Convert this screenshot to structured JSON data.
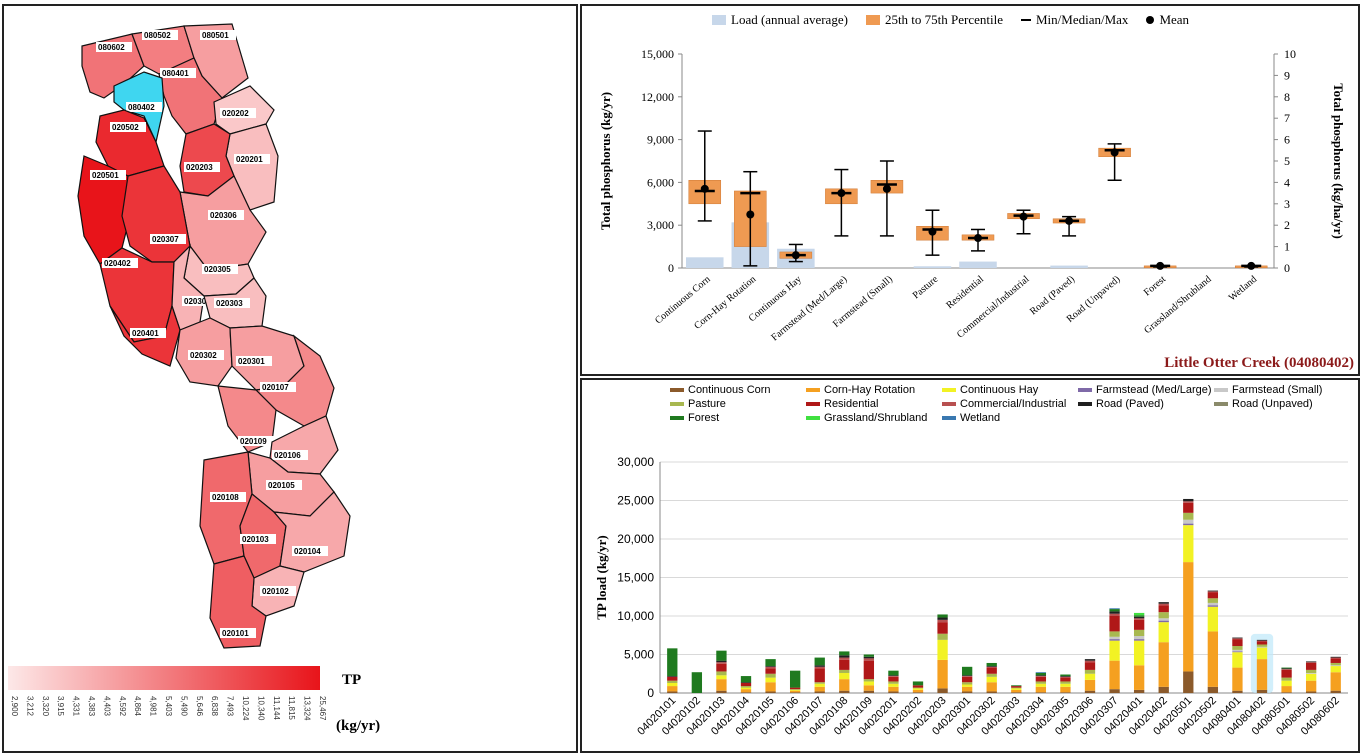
{
  "map": {
    "legend_title": "TP",
    "legend_unit": "(kg/yr)",
    "legend_ticks": [
      "2,900",
      "3,212",
      "3,320",
      "3,915",
      "4,331",
      "4,383",
      "4,403",
      "4,592",
      "4,864",
      "4,981",
      "5,403",
      "5,490",
      "5,646",
      "6,838",
      "7,493",
      "10,224",
      "10,340",
      "11,144",
      "11,815",
      "13,324",
      "25,467"
    ],
    "colors": {
      "low": "#fde8e8",
      "high": "#e8141a",
      "selected": "#3fd6f0"
    },
    "units": [
      {
        "id": "080602",
        "level": 0.55
      },
      {
        "id": "080502",
        "level": 0.5
      },
      {
        "id": "080501",
        "level": 0.35
      },
      {
        "id": "080401",
        "level": 0.55
      },
      {
        "id": "080402",
        "level": -1
      },
      {
        "id": "020202",
        "level": 0.15
      },
      {
        "id": "020502",
        "level": 0.9
      },
      {
        "id": "020201",
        "level": 0.2
      },
      {
        "id": "020501",
        "level": 1.0
      },
      {
        "id": "020203",
        "level": 0.75
      },
      {
        "id": "020306",
        "level": 0.35
      },
      {
        "id": "020307",
        "level": 0.85
      },
      {
        "id": "020402",
        "level": 0.85
      },
      {
        "id": "020305",
        "level": 0.2
      },
      {
        "id": "020304",
        "level": 0.25
      },
      {
        "id": "020303",
        "level": 0.2
      },
      {
        "id": "020401",
        "level": 0.85
      },
      {
        "id": "020302",
        "level": 0.35
      },
      {
        "id": "020301",
        "level": 0.35
      },
      {
        "id": "020107",
        "level": 0.45
      },
      {
        "id": "020109",
        "level": 0.45
      },
      {
        "id": "020106",
        "level": 0.3
      },
      {
        "id": "020105",
        "level": 0.35
      },
      {
        "id": "020108",
        "level": 0.6
      },
      {
        "id": "020103",
        "level": 0.6
      },
      {
        "id": "020104",
        "level": 0.3
      },
      {
        "id": "020102",
        "level": 0.25
      },
      {
        "id": "020101",
        "level": 0.65
      }
    ]
  },
  "chart_data": [
    {
      "type": "box",
      "watershed": "Little Otter Creek (04080402)",
      "legend": [
        "Load (annual average)",
        "25th to 75th Percentile",
        "Min/Median/Max",
        "Mean"
      ],
      "ylabel": "Total phosphorus (kg/yr)",
      "y2label": "Total phosphorus (kg/ha/yr)",
      "ylim": [
        0,
        15000
      ],
      "y2lim": [
        0,
        10
      ],
      "yticks": [
        "0",
        "3,000",
        "6,000",
        "9,000",
        "12,000",
        "15,000"
      ],
      "y2ticks": [
        "0",
        "1",
        "2",
        "3",
        "4",
        "5",
        "6",
        "7",
        "8",
        "9",
        "10"
      ],
      "categories": [
        "Continuous Corn",
        "Corn-Hay Rotation",
        "Continuous Hay",
        "Farmstead (Med/Large)",
        "Farmstead (Small)",
        "Pasture",
        "Residential",
        "Commercial/Industrial",
        "Road (Paved)",
        "Road (Unpaved)",
        "Forest",
        "Grassland/Shrubland",
        "Wetland"
      ],
      "load_kg_yr": [
        750,
        3200,
        1350,
        0,
        0,
        120,
        450,
        0,
        170,
        0,
        0,
        0,
        0
      ],
      "rate_kg_ha_yr": [
        {
          "min": 2.2,
          "q1": 3.0,
          "median": 3.6,
          "q3": 4.1,
          "max": 6.4,
          "mean": 3.7
        },
        {
          "min": 0.1,
          "q1": 1.0,
          "median": 3.5,
          "q3": 3.6,
          "max": 4.5,
          "mean": 2.5
        },
        {
          "min": 0.3,
          "q1": 0.45,
          "median": 0.6,
          "q3": 0.75,
          "max": 1.1,
          "mean": 0.6
        },
        {
          "min": 1.5,
          "q1": 3.0,
          "median": 3.5,
          "q3": 3.7,
          "max": 4.6,
          "mean": 3.5
        },
        {
          "min": 1.5,
          "q1": 3.5,
          "median": 3.9,
          "q3": 4.1,
          "max": 5.0,
          "mean": 3.7
        },
        {
          "min": 0.6,
          "q1": 1.3,
          "median": 1.8,
          "q3": 1.95,
          "max": 2.7,
          "mean": 1.7
        },
        {
          "min": 0.8,
          "q1": 1.3,
          "median": 1.4,
          "q3": 1.55,
          "max": 1.8,
          "mean": 1.4
        },
        {
          "min": 1.6,
          "q1": 2.3,
          "median": 2.45,
          "q3": 2.55,
          "max": 2.7,
          "mean": 2.4
        },
        {
          "min": 1.5,
          "q1": 2.1,
          "median": 2.2,
          "q3": 2.3,
          "max": 2.4,
          "mean": 2.2
        },
        {
          "min": 4.1,
          "q1": 5.2,
          "median": 5.5,
          "q3": 5.6,
          "max": 5.8,
          "mean": 5.4
        },
        {
          "min": 0.05,
          "q1": 0.05,
          "median": 0.1,
          "q3": 0.1,
          "max": 0.1,
          "mean": 0.1
        },
        null,
        {
          "min": 0.05,
          "q1": 0.05,
          "median": 0.1,
          "q3": 0.1,
          "max": 0.1,
          "mean": 0.1
        }
      ]
    },
    {
      "type": "stacked-bar",
      "ylabel": "TP load (kg/yr)",
      "ylim": [
        0,
        30000
      ],
      "yticks": [
        "0",
        "5,000",
        "10,000",
        "15,000",
        "20,000",
        "25,000",
        "30,000"
      ],
      "highlight": "04080402",
      "series": [
        {
          "name": "Continuous Corn",
          "color": "#8b5a2b"
        },
        {
          "name": "Corn-Hay Rotation",
          "color": "#f5a020"
        },
        {
          "name": "Continuous Hay",
          "color": "#f2f224"
        },
        {
          "name": "Farmstead (Med/Large)",
          "color": "#7f6aa8"
        },
        {
          "name": "Farmstead (Small)",
          "color": "#c8c8c8"
        },
        {
          "name": "Pasture",
          "color": "#a8b850"
        },
        {
          "name": "Residential",
          "color": "#b01818"
        },
        {
          "name": "Commercial/Industrial",
          "color": "#b85050"
        },
        {
          "name": "Road (Paved)",
          "color": "#202020"
        },
        {
          "name": "Road (Unpaved)",
          "color": "#8a8a6a"
        },
        {
          "name": "Forest",
          "color": "#1f7a1f"
        },
        {
          "name": "Grassland/Shrubland",
          "color": "#40e040"
        },
        {
          "name": "Wetland",
          "color": "#3a78b0"
        }
      ],
      "categories": [
        "04020101",
        "04020102",
        "04020103",
        "04020104",
        "04020105",
        "04020106",
        "04020107",
        "04020108",
        "04020109",
        "04020201",
        "04020202",
        "04020203",
        "04020301",
        "04020302",
        "04020303",
        "04020304",
        "04020305",
        "04020306",
        "04020307",
        "04020401",
        "04020402",
        "04020501",
        "04020502",
        "04080401",
        "04080402",
        "04080501",
        "04080502",
        "04080602"
      ],
      "values": [
        [
          200,
          700,
          400,
          0,
          0,
          300,
          500,
          0,
          100,
          0,
          3600,
          0,
          0
        ],
        [
          0,
          0,
          0,
          0,
          0,
          0,
          0,
          0,
          0,
          0,
          2700,
          0,
          0
        ],
        [
          300,
          1500,
          500,
          0,
          0,
          500,
          1000,
          200,
          200,
          0,
          1300,
          0,
          0
        ],
        [
          100,
          400,
          200,
          0,
          0,
          200,
          400,
          0,
          100,
          0,
          800,
          0,
          0
        ],
        [
          200,
          1200,
          600,
          0,
          0,
          500,
          700,
          200,
          100,
          0,
          900,
          0,
          0
        ],
        [
          100,
          200,
          100,
          0,
          0,
          100,
          200,
          0,
          0,
          0,
          2200,
          0,
          0
        ],
        [
          200,
          600,
          400,
          0,
          0,
          200,
          1800,
          200,
          200,
          0,
          1000,
          0,
          0
        ],
        [
          300,
          1500,
          800,
          0,
          0,
          400,
          1300,
          300,
          300,
          0,
          500,
          0,
          0
        ],
        [
          300,
          700,
          500,
          0,
          0,
          300,
          2400,
          300,
          200,
          0,
          300,
          0,
          0
        ],
        [
          200,
          600,
          400,
          0,
          0,
          300,
          600,
          100,
          100,
          0,
          600,
          0,
          0
        ],
        [
          100,
          300,
          200,
          0,
          0,
          100,
          300,
          0,
          0,
          0,
          500,
          0,
          0
        ],
        [
          600,
          3700,
          2600,
          0,
          0,
          800,
          1500,
          300,
          300,
          0,
          400,
          0,
          0
        ],
        [
          200,
          600,
          300,
          0,
          0,
          300,
          700,
          100,
          100,
          0,
          1100,
          0,
          0
        ],
        [
          200,
          1200,
          700,
          0,
          0,
          400,
          800,
          100,
          100,
          0,
          400,
          0,
          0
        ],
        [
          100,
          300,
          200,
          0,
          0,
          100,
          200,
          0,
          0,
          0,
          100,
          0,
          0
        ],
        [
          100,
          700,
          400,
          0,
          0,
          300,
          600,
          100,
          100,
          0,
          300,
          0,
          100
        ],
        [
          100,
          700,
          400,
          0,
          0,
          300,
          500,
          100,
          100,
          0,
          200,
          0,
          0
        ],
        [
          300,
          1400,
          800,
          0,
          0,
          500,
          1000,
          200,
          200,
          0,
          0,
          0,
          0
        ],
        [
          500,
          3700,
          2600,
          200,
          300,
          700,
          2000,
          300,
          300,
          0,
          300,
          0,
          100
        ],
        [
          400,
          3200,
          3200,
          200,
          400,
          800,
          1300,
          200,
          200,
          0,
          200,
          300,
          0
        ],
        [
          800,
          5800,
          2600,
          200,
          300,
          800,
          900,
          200,
          200,
          0,
          0,
          0,
          0
        ],
        [
          2800,
          14200,
          4800,
          200,
          500,
          900,
          1300,
          200,
          300,
          0,
          0,
          0,
          0
        ],
        [
          800,
          7200,
          3200,
          200,
          300,
          600,
          800,
          100,
          100,
          0,
          0,
          0,
          0
        ],
        [
          300,
          3000,
          2000,
          100,
          200,
          500,
          900,
          100,
          100,
          0,
          0,
          0,
          0
        ],
        [
          400,
          4000,
          1500,
          0,
          100,
          300,
          400,
          100,
          100,
          0,
          0,
          0,
          0
        ],
        [
          100,
          800,
          700,
          0,
          0,
          400,
          1000,
          100,
          100,
          0,
          100,
          0,
          0
        ],
        [
          200,
          1400,
          900,
          0,
          100,
          400,
          900,
          100,
          100,
          0,
          0,
          0,
          0
        ],
        [
          300,
          2400,
          800,
          0,
          100,
          300,
          600,
          100,
          100,
          0,
          0,
          0,
          0
        ]
      ]
    }
  ]
}
